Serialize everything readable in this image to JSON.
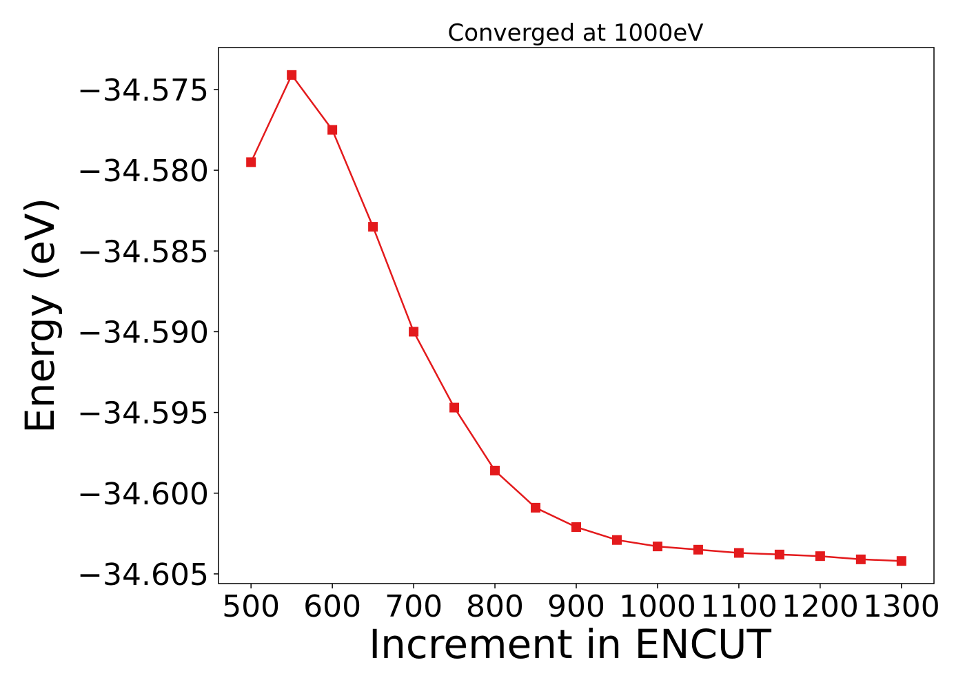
{
  "chart_data": {
    "type": "line",
    "title": "Converged at 1000eV",
    "xlabel": "Increment in ENCUT",
    "ylabel": "Energy (eV)",
    "xlim": [
      460,
      1340
    ],
    "ylim": [
      -34.6056,
      -34.5724
    ],
    "x_ticks": [
      500,
      600,
      700,
      800,
      900,
      1000,
      1100,
      1200,
      1300
    ],
    "x_tick_labels": [
      "500",
      "600",
      "700",
      "800",
      "900",
      "1000",
      "1100",
      "1200",
      "1300"
    ],
    "y_ticks": [
      -34.575,
      -34.58,
      -34.585,
      -34.59,
      -34.595,
      -34.6,
      -34.605
    ],
    "y_tick_labels": [
      "−34.575",
      "−34.580",
      "−34.585",
      "−34.590",
      "−34.595",
      "−34.600",
      "−34.605"
    ],
    "grid": false,
    "series": [
      {
        "color": "#e31a1c",
        "marker": "square",
        "x": [
          500,
          550,
          600,
          650,
          700,
          750,
          800,
          850,
          900,
          950,
          1000,
          1050,
          1100,
          1150,
          1200,
          1250,
          1300
        ],
        "y": [
          -34.5795,
          -34.5741,
          -34.5775,
          -34.5835,
          -34.59,
          -34.5947,
          -34.5986,
          -34.6009,
          -34.6021,
          -34.6029,
          -34.6033,
          -34.6035,
          -34.6037,
          -34.6038,
          -34.6039,
          -34.6041,
          -34.6042
        ]
      }
    ]
  }
}
